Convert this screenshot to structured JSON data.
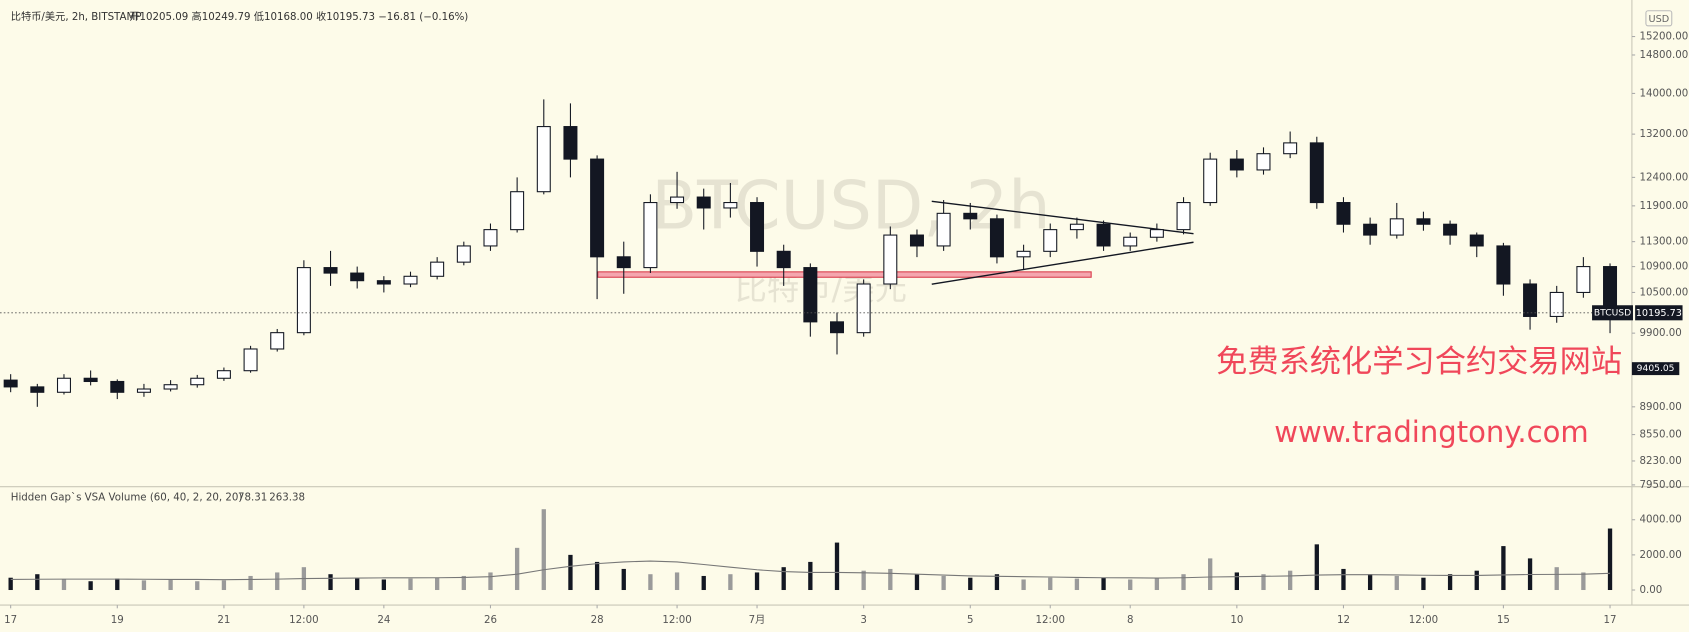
{
  "header": {
    "symbol": "比特币/美元, 2h, BITSTAMP",
    "ohlc": "开10205.09 高10249.79 低10168.00 收10195.73 −16.81 (−0.16%)",
    "currency": "USD"
  },
  "watermark": {
    "symbol": "BTCUSD, 2h",
    "name": "比特币/美元"
  },
  "ads": {
    "line1": "免费系统化学习合约交易网站",
    "line2": "www.tradingtony.com"
  },
  "chart_data": [
    {
      "type": "candlestick",
      "log": true,
      "xlim": [
        16.8,
        47.37
      ],
      "ylim": [
        7930,
        15900
      ],
      "x": [
        17,
        17.5,
        18,
        18.5,
        19,
        19.5,
        20,
        20.5,
        21,
        21.5,
        22,
        22.5,
        23,
        23.5,
        24,
        24.5,
        25,
        25.5,
        26,
        26.5,
        27,
        27.5,
        28,
        28.5,
        29,
        29.5,
        30,
        30.5,
        31,
        31.5,
        32,
        32.5,
        33,
        33.5,
        34,
        34.5,
        35,
        35.5,
        36,
        36.5,
        37,
        37.5,
        38,
        38.5,
        39,
        39.5,
        40,
        40.5,
        41,
        41.5,
        42,
        42.5,
        43,
        43.5,
        44,
        44.5,
        45,
        45.5,
        46,
        46.5,
        47
      ],
      "open": [
        9250,
        9160,
        9089,
        9275,
        9232,
        9089,
        9132,
        9189,
        9275,
        9377,
        9676,
        9907,
        10884,
        10798,
        10680,
        10629,
        10748,
        10970,
        11230,
        11498,
        12146,
        13345,
        12732,
        11055,
        10884,
        11957,
        12052,
        11864,
        11957,
        11143,
        10884,
        10063,
        9907,
        10629,
        11408,
        11230,
        11772,
        11679,
        11055,
        11143,
        11498,
        11588,
        11230,
        11372,
        11498,
        11957,
        12732,
        12534,
        12832,
        13034,
        11957,
        11588,
        11408,
        11679,
        11588,
        11408,
        11230,
        10629,
        10142,
        10500,
        10900
      ],
      "high": [
        9330,
        9200,
        9330,
        9380,
        9260,
        9200,
        9250,
        9320,
        9420,
        9720,
        9960,
        11000,
        11150,
        10900,
        10750,
        10820,
        11050,
        11300,
        11600,
        12400,
        13880,
        13800,
        12800,
        11300,
        12100,
        12500,
        12200,
        12300,
        12050,
        11250,
        10950,
        10200,
        10700,
        11550,
        11500,
        12000,
        11950,
        11750,
        11250,
        11600,
        11700,
        11650,
        11450,
        11600,
        12050,
        12850,
        12900,
        12950,
        13250,
        13150,
        12050,
        11700,
        11950,
        11800,
        11650,
        11450,
        11280,
        10700,
        10600,
        11050,
        10950
      ],
      "low": [
        9090,
        8900,
        9060,
        9180,
        9000,
        9030,
        9100,
        9150,
        9240,
        9350,
        9640,
        9870,
        10600,
        10560,
        10500,
        10580,
        10700,
        10920,
        11150,
        11450,
        12100,
        12400,
        10400,
        10480,
        10800,
        11850,
        11500,
        11700,
        10900,
        10600,
        9850,
        9600,
        9850,
        10550,
        11050,
        11150,
        11500,
        10950,
        10850,
        11050,
        11350,
        11150,
        11150,
        11300,
        11420,
        11900,
        12400,
        12450,
        12750,
        11850,
        11450,
        11250,
        11350,
        11480,
        11250,
        11050,
        10450,
        9950,
        10050,
        10420,
        9900
      ],
      "close": [
        9160,
        9089,
        9275,
        9232,
        9089,
        9132,
        9189,
        9275,
        9377,
        9676,
        9907,
        10884,
        10798,
        10680,
        10629,
        10748,
        10970,
        11230,
        11498,
        12146,
        13345,
        12732,
        11055,
        10884,
        11957,
        12052,
        11864,
        11957,
        11143,
        10884,
        10063,
        9907,
        10629,
        11408,
        11230,
        11772,
        11679,
        11055,
        11143,
        11498,
        11588,
        11230,
        11372,
        11498,
        11957,
        12732,
        12534,
        12832,
        13034,
        11957,
        11588,
        11408,
        11679,
        11588,
        11408,
        11230,
        10629,
        10142,
        10500,
        10900,
        10195.73
      ],
      "yticks": [
        {
          "value": 15200,
          "label": "15200.00"
        },
        {
          "value": 14800,
          "label": "14800.00"
        },
        {
          "value": 14000,
          "label": "14000.00"
        },
        {
          "value": 13200,
          "label": "13200.00"
        },
        {
          "value": 12400,
          "label": "12400.00"
        },
        {
          "value": 11900,
          "label": "11900.00"
        },
        {
          "value": 11300,
          "label": "11300.00"
        },
        {
          "value": 10900,
          "label": "10900.00"
        },
        {
          "value": 10500,
          "label": "10500.00"
        },
        {
          "value": 9900,
          "label": "9900.00"
        },
        {
          "value": 8900,
          "label": "8900.00"
        },
        {
          "value": 8550,
          "label": "8550.00"
        },
        {
          "value": 8230,
          "label": "8230.00"
        },
        {
          "value": 7950,
          "label": "7950.00"
        }
      ],
      "xticks": [
        17,
        19,
        21,
        {
          "value": 22.5,
          "label": "12:00"
        },
        24,
        26,
        28,
        {
          "value": 29.5,
          "label": "12:00"
        },
        {
          "value": 31,
          "label": "7月"
        },
        {
          "value": 33,
          "label": "3"
        },
        {
          "value": 35,
          "label": "5"
        },
        {
          "value": 36.5,
          "label": "12:00"
        },
        {
          "value": 38,
          "label": "8"
        },
        {
          "value": 40,
          "label": "10"
        },
        {
          "value": 42,
          "label": "12"
        },
        {
          "value": 43.5,
          "label": "12:00"
        },
        {
          "value": 45,
          "label": "15"
        },
        {
          "value": 47,
          "label": "17"
        }
      ],
      "last_price": {
        "label": "BTCUSD",
        "value": 10195.73
      },
      "marker_price": 9405.05,
      "up_color": "#ffffff",
      "down_color": "#131722"
    },
    {
      "type": "bar",
      "title": "Hidden Gap`s VSA Volume (60, 40, 2, 20, 20)",
      "readout": "78.31",
      "readout2": "263.38",
      "xlim": [
        16.8,
        47.37
      ],
      "ylim": [
        0,
        5700
      ],
      "x": [
        17,
        17.5,
        18,
        18.5,
        19,
        19.5,
        20,
        20.5,
        21,
        21.5,
        22,
        22.5,
        23,
        23.5,
        24,
        24.5,
        25,
        25.5,
        26,
        26.5,
        27,
        27.5,
        28,
        28.5,
        29,
        29.5,
        30,
        30.5,
        31,
        31.5,
        32,
        32.5,
        33,
        33.5,
        34,
        34.5,
        35,
        35.5,
        36,
        36.5,
        37,
        37.5,
        38,
        38.5,
        39,
        39.5,
        40,
        40.5,
        41,
        41.5,
        42,
        42.5,
        43,
        43.5,
        44,
        44.5,
        45,
        45.5,
        46,
        46.5,
        47
      ],
      "values": [
        700,
        900,
        600,
        500,
        650,
        550,
        600,
        500,
        550,
        800,
        1000,
        1300,
        900,
        700,
        600,
        650,
        700,
        800,
        1000,
        2400,
        4600,
        2000,
        1600,
        1200,
        900,
        1000,
        800,
        900,
        1000,
        1300,
        1600,
        2700,
        1100,
        1200,
        900,
        800,
        700,
        900,
        600,
        700,
        650,
        700,
        600,
        700,
        900,
        1800,
        1000,
        900,
        1100,
        2600,
        1200,
        900,
        800,
        700,
        900,
        1100,
        2500,
        1800,
        1300,
        1000,
        3500
      ],
      "average": [
        600,
        610,
        620,
        620,
        620,
        610,
        600,
        600,
        590,
        600,
        620,
        650,
        670,
        680,
        690,
        690,
        700,
        720,
        760,
        900,
        1150,
        1350,
        1500,
        1600,
        1650,
        1600,
        1450,
        1300,
        1150,
        1050,
        1000,
        1000,
        980,
        950,
        900,
        850,
        800,
        780,
        760,
        740,
        720,
        700,
        690,
        680,
        700,
        740,
        760,
        780,
        800,
        850,
        870,
        870,
        860,
        840,
        830,
        830,
        860,
        880,
        890,
        900,
        950
      ],
      "yticks": [
        {
          "value": 0,
          "label": "0.00"
        },
        {
          "value": 2000,
          "label": "2000.00"
        },
        {
          "value": 4000,
          "label": "4000.00"
        }
      ],
      "up_color": "#9a9a9a",
      "down_color": "#131722",
      "line_color": "#777777"
    }
  ]
}
